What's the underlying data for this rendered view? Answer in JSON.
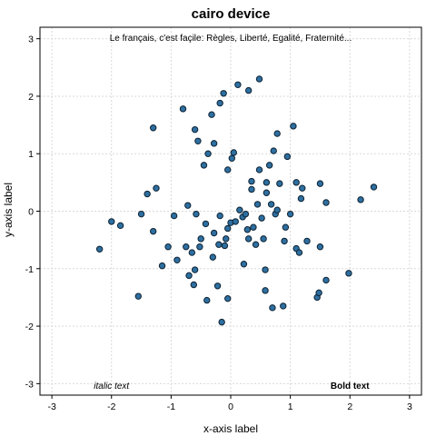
{
  "chart_data": {
    "type": "scatter",
    "title": "cairo device",
    "xlabel": "x-axis label",
    "ylabel": "y-axis label",
    "xlim": [
      -3.2,
      3.2
    ],
    "ylim": [
      -3.2,
      3.2
    ],
    "xticks": [
      -3,
      -2,
      -1,
      0,
      1,
      2,
      3
    ],
    "yticks": [
      -3,
      -2,
      -1,
      0,
      1,
      2,
      3
    ],
    "grid": true,
    "legend": "none",
    "colors": {
      "point_fill": "#2e6fa0",
      "point_edge": "#0d2233",
      "grid": "#d9d9d9",
      "frame": "#000000"
    },
    "annotations": [
      {
        "text": "Le français, c'est façile: Règles, Liberté, Egalité, Fraternité...",
        "x": 0,
        "y": 3.03,
        "style": "normal"
      },
      {
        "text": "italic text",
        "x": -2.0,
        "y": -3.03,
        "style": "italic"
      },
      {
        "text": "Bold text",
        "x": 2.0,
        "y": -3.03,
        "style": "bold"
      }
    ],
    "points": [
      {
        "x": -2.2,
        "y": -0.66
      },
      {
        "x": -2.0,
        "y": -0.18
      },
      {
        "x": -1.85,
        "y": -0.25
      },
      {
        "x": -1.55,
        "y": -1.48
      },
      {
        "x": -1.5,
        "y": -0.05
      },
      {
        "x": -1.4,
        "y": 0.3
      },
      {
        "x": -1.3,
        "y": 1.45
      },
      {
        "x": -1.25,
        "y": 0.4
      },
      {
        "x": -1.3,
        "y": -0.35
      },
      {
        "x": -1.15,
        "y": -0.95
      },
      {
        "x": -1.05,
        "y": -0.62
      },
      {
        "x": -0.95,
        "y": -0.08
      },
      {
        "x": -0.9,
        "y": -0.85
      },
      {
        "x": -0.8,
        "y": 1.78
      },
      {
        "x": -0.75,
        "y": -0.62
      },
      {
        "x": -0.72,
        "y": 0.1
      },
      {
        "x": -0.7,
        "y": -1.12
      },
      {
        "x": -0.65,
        "y": -0.72
      },
      {
        "x": -0.62,
        "y": -1.28
      },
      {
        "x": -0.6,
        "y": -1.02
      },
      {
        "x": -0.6,
        "y": 1.42
      },
      {
        "x": -0.58,
        "y": -0.05
      },
      {
        "x": -0.55,
        "y": 1.22
      },
      {
        "x": -0.52,
        "y": -0.62
      },
      {
        "x": -0.5,
        "y": -0.48
      },
      {
        "x": -0.45,
        "y": 0.8
      },
      {
        "x": -0.42,
        "y": -0.22
      },
      {
        "x": -0.4,
        "y": -1.55
      },
      {
        "x": -0.38,
        "y": 1.0
      },
      {
        "x": -0.32,
        "y": 1.68
      },
      {
        "x": -0.3,
        "y": -0.8
      },
      {
        "x": -0.28,
        "y": -0.38
      },
      {
        "x": -0.28,
        "y": 1.18
      },
      {
        "x": -0.22,
        "y": -1.3
      },
      {
        "x": -0.2,
        "y": -0.58
      },
      {
        "x": -0.18,
        "y": -0.08
      },
      {
        "x": -0.18,
        "y": 1.88
      },
      {
        "x": -0.15,
        "y": -1.93
      },
      {
        "x": -0.12,
        "y": 2.05
      },
      {
        "x": -0.1,
        "y": -0.6
      },
      {
        "x": -0.08,
        "y": -0.48
      },
      {
        "x": -0.05,
        "y": 0.72
      },
      {
        "x": -0.05,
        "y": -1.52
      },
      {
        "x": -0.05,
        "y": -0.3
      },
      {
        "x": 0.0,
        "y": -0.2
      },
      {
        "x": 0.02,
        "y": 0.92
      },
      {
        "x": 0.05,
        "y": 1.02
      },
      {
        "x": 0.08,
        "y": -0.18
      },
      {
        "x": 0.12,
        "y": 2.2
      },
      {
        "x": 0.15,
        "y": 0.02
      },
      {
        "x": 0.2,
        "y": -0.1
      },
      {
        "x": 0.22,
        "y": -0.92
      },
      {
        "x": 0.25,
        "y": -0.05
      },
      {
        "x": 0.28,
        "y": -0.32
      },
      {
        "x": 0.3,
        "y": -0.48
      },
      {
        "x": 0.3,
        "y": 2.1
      },
      {
        "x": 0.35,
        "y": 0.38
      },
      {
        "x": 0.35,
        "y": 0.52
      },
      {
        "x": 0.38,
        "y": -0.28
      },
      {
        "x": 0.42,
        "y": -0.58
      },
      {
        "x": 0.45,
        "y": 0.12
      },
      {
        "x": 0.48,
        "y": 0.72
      },
      {
        "x": 0.48,
        "y": 2.3
      },
      {
        "x": 0.52,
        "y": -0.12
      },
      {
        "x": 0.55,
        "y": -0.48
      },
      {
        "x": 0.58,
        "y": -1.38
      },
      {
        "x": 0.58,
        "y": -1.02
      },
      {
        "x": 0.6,
        "y": 0.32
      },
      {
        "x": 0.6,
        "y": 0.5
      },
      {
        "x": 0.65,
        "y": 0.8
      },
      {
        "x": 0.68,
        "y": 0.12
      },
      {
        "x": 0.7,
        "y": -1.68
      },
      {
        "x": 0.72,
        "y": 1.05
      },
      {
        "x": 0.75,
        "y": -0.05
      },
      {
        "x": 0.78,
        "y": 0.02
      },
      {
        "x": 0.78,
        "y": 1.35
      },
      {
        "x": 0.82,
        "y": 0.48
      },
      {
        "x": 0.88,
        "y": -1.65
      },
      {
        "x": 0.9,
        "y": -0.52
      },
      {
        "x": 0.92,
        "y": -0.28
      },
      {
        "x": 0.95,
        "y": 0.95
      },
      {
        "x": 1.0,
        "y": -0.05
      },
      {
        "x": 1.05,
        "y": 1.48
      },
      {
        "x": 1.1,
        "y": 0.5
      },
      {
        "x": 1.1,
        "y": -0.65
      },
      {
        "x": 1.15,
        "y": -0.72
      },
      {
        "x": 1.18,
        "y": 0.22
      },
      {
        "x": 1.2,
        "y": 0.4
      },
      {
        "x": 1.28,
        "y": -0.52
      },
      {
        "x": 1.45,
        "y": -1.5
      },
      {
        "x": 1.48,
        "y": -1.42
      },
      {
        "x": 1.5,
        "y": -0.62
      },
      {
        "x": 1.5,
        "y": 0.48
      },
      {
        "x": 1.6,
        "y": -1.2
      },
      {
        "x": 1.6,
        "y": 0.15
      },
      {
        "x": 1.98,
        "y": -1.08
      },
      {
        "x": 2.18,
        "y": 0.2
      },
      {
        "x": 2.4,
        "y": 0.42
      }
    ]
  }
}
